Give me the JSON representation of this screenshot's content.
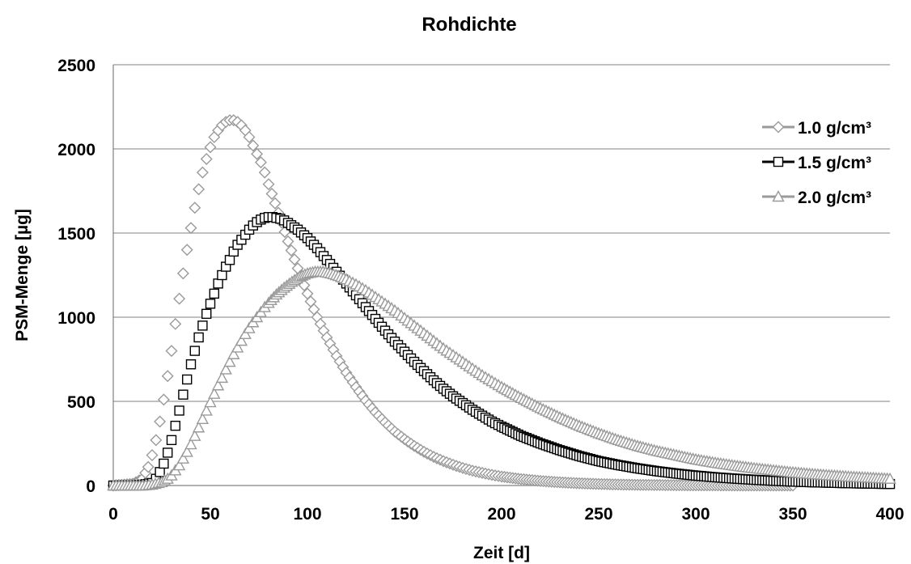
{
  "chart_data": {
    "type": "scatter",
    "title": "Rohdichte",
    "xlabel": "Zeit [d]",
    "ylabel": "PSM-Menge [µg]",
    "xlim": [
      0,
      400
    ],
    "ylim": [
      0,
      2500
    ],
    "xticks": [
      0,
      50,
      100,
      150,
      200,
      250,
      300,
      350,
      400
    ],
    "yticks": [
      0,
      500,
      1000,
      1500,
      2000,
      2500
    ],
    "grid": true,
    "legend_position": "right",
    "series": [
      {
        "name": "1.0 g/cm³",
        "marker": "diamond",
        "color": "#9a9a9a",
        "x": [
          0,
          10,
          15,
          18,
          20,
          22,
          24,
          26,
          28,
          30,
          32,
          34,
          36,
          38,
          40,
          42,
          44,
          46,
          48,
          50,
          52,
          54,
          56,
          58,
          60,
          62,
          64,
          66,
          68,
          70,
          72,
          74,
          76,
          78,
          80,
          85,
          90,
          95,
          100,
          105,
          110,
          115,
          120,
          125,
          130,
          135,
          140,
          145,
          150,
          155,
          160,
          165,
          170,
          175,
          180,
          185,
          190,
          195,
          200,
          210,
          220,
          230,
          240,
          250,
          260,
          270,
          280,
          290,
          300,
          310,
          320,
          330,
          340,
          350
        ],
        "y": [
          0,
          10,
          40,
          110,
          180,
          270,
          380,
          510,
          650,
          800,
          960,
          1110,
          1260,
          1400,
          1530,
          1650,
          1760,
          1860,
          1940,
          2010,
          2070,
          2110,
          2140,
          2160,
          2170,
          2170,
          2160,
          2140,
          2110,
          2070,
          2020,
          1970,
          1920,
          1860,
          1790,
          1620,
          1450,
          1290,
          1140,
          1000,
          880,
          770,
          670,
          585,
          505,
          435,
          375,
          320,
          275,
          235,
          200,
          170,
          145,
          123,
          104,
          88,
          75,
          63,
          53,
          38,
          27,
          19,
          13,
          9,
          6,
          4,
          3,
          2,
          1,
          1,
          0,
          0,
          0,
          0
        ]
      },
      {
        "name": "1.5 g/cm³",
        "marker": "square",
        "color": "#000000",
        "x": [
          0,
          10,
          15,
          20,
          22,
          24,
          26,
          28,
          30,
          32,
          34,
          36,
          38,
          40,
          42,
          44,
          46,
          48,
          50,
          52,
          54,
          56,
          58,
          60,
          62,
          64,
          66,
          68,
          70,
          72,
          74,
          76,
          78,
          80,
          82,
          84,
          86,
          88,
          90,
          95,
          100,
          105,
          110,
          115,
          120,
          125,
          130,
          135,
          140,
          145,
          150,
          155,
          160,
          165,
          170,
          175,
          180,
          185,
          190,
          195,
          200,
          210,
          220,
          230,
          240,
          250,
          260,
          270,
          280,
          290,
          300,
          310,
          320,
          330,
          340,
          350,
          360,
          370,
          380,
          390,
          400
        ],
        "y": [
          0,
          0,
          5,
          15,
          40,
          80,
          130,
          195,
          270,
          355,
          445,
          540,
          630,
          720,
          800,
          880,
          950,
          1020,
          1080,
          1140,
          1200,
          1250,
          1300,
          1340,
          1390,
          1430,
          1460,
          1490,
          1520,
          1545,
          1565,
          1580,
          1590,
          1595,
          1595,
          1590,
          1585,
          1575,
          1560,
          1520,
          1470,
          1410,
          1340,
          1270,
          1200,
          1130,
          1060,
          990,
          920,
          855,
          795,
          735,
          680,
          625,
          575,
          530,
          490,
          450,
          415,
          380,
          350,
          295,
          250,
          210,
          175,
          145,
          122,
          102,
          85,
          71,
          59,
          49,
          41,
          34,
          28,
          23,
          19,
          16,
          13,
          11,
          9
        ]
      },
      {
        "name": "2.0 g/cm³",
        "marker": "triangle",
        "color": "#9a9a9a",
        "x": [
          0,
          15,
          20,
          25,
          28,
          30,
          32,
          34,
          36,
          38,
          40,
          42,
          44,
          46,
          48,
          50,
          52,
          54,
          56,
          58,
          60,
          62,
          64,
          66,
          68,
          70,
          72,
          74,
          76,
          78,
          80,
          84,
          88,
          92,
          96,
          100,
          104,
          108,
          112,
          116,
          120,
          125,
          130,
          135,
          140,
          145,
          150,
          155,
          160,
          165,
          170,
          175,
          180,
          185,
          190,
          195,
          200,
          210,
          220,
          230,
          240,
          250,
          260,
          270,
          280,
          290,
          300,
          310,
          320,
          330,
          340,
          350,
          360,
          370,
          380,
          390,
          400
        ],
        "y": [
          0,
          0,
          5,
          20,
          40,
          60,
          90,
          120,
          160,
          200,
          245,
          295,
          345,
          395,
          445,
          495,
          545,
          595,
          640,
          690,
          735,
          780,
          820,
          860,
          900,
          935,
          970,
          1000,
          1030,
          1060,
          1085,
          1135,
          1175,
          1210,
          1240,
          1260,
          1270,
          1270,
          1260,
          1245,
          1225,
          1195,
          1160,
          1120,
          1080,
          1040,
          995,
          950,
          905,
          860,
          815,
          775,
          735,
          695,
          655,
          620,
          585,
          520,
          460,
          405,
          355,
          310,
          270,
          235,
          205,
          180,
          155,
          135,
          118,
          103,
          90,
          78,
          68,
          60,
          52,
          46,
          40
        ]
      }
    ]
  }
}
